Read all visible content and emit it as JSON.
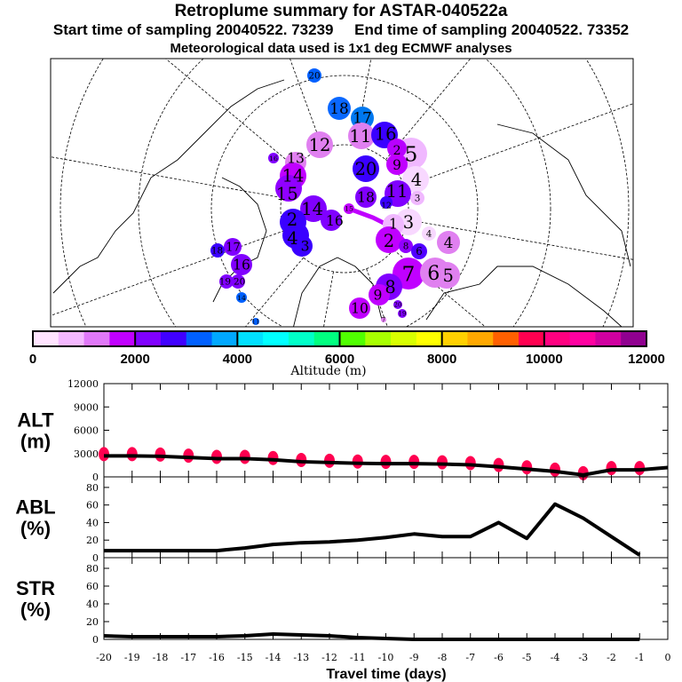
{
  "title": "Retroplume summary for ASTAR-040522a",
  "start_time": "Start time of sampling 20040522. 73239",
  "end_time": "End time of sampling 20040522. 73352",
  "met_data": "Meteorological data used is 1x1 deg ECMWF analyses",
  "colorbar": {
    "label": "Altitude (m)",
    "ticks": [
      "0",
      "2000",
      "4000",
      "6000",
      "8000",
      "10000",
      "12000"
    ],
    "colors": [
      "#ffe4ff",
      "#f4b8ff",
      "#e078f8",
      "#c000ff",
      "#8000ff",
      "#4000ff",
      "#0060ff",
      "#00a8ff",
      "#00e0ff",
      "#00ffff",
      "#00ffc8",
      "#00ff80",
      "#50ff00",
      "#a8ff00",
      "#d8ff00",
      "#ffff00",
      "#ffd000",
      "#ffa800",
      "#ff6000",
      "#ff0050",
      "#ff0080",
      "#ff00a0",
      "#d000a0",
      "#900090"
    ]
  },
  "map": {
    "clusters": [
      {
        "label": "20",
        "color": "#0060ff"
      },
      {
        "label": "18",
        "color": "#0a68ff"
      },
      {
        "label": "17",
        "color": "#0078f0"
      },
      {
        "label": "11",
        "color": "#e080f0"
      },
      {
        "label": "16",
        "color": "#3a00ff"
      },
      {
        "label": "12",
        "color": "#e080f0"
      },
      {
        "label": "5",
        "color": "#f0b8ff"
      },
      {
        "label": "2",
        "color": "#b800ff"
      },
      {
        "label": "9",
        "color": "#c000ff"
      },
      {
        "label": "20",
        "color": "#3a00ff"
      },
      {
        "label": "13",
        "color": "#e080f0"
      },
      {
        "label": "14",
        "color": "#c000ff"
      },
      {
        "label": "15",
        "color": "#9000ff"
      },
      {
        "label": "16",
        "color": "#8000ff"
      },
      {
        "label": "4",
        "color": "#f8d8ff"
      },
      {
        "label": "11",
        "color": "#8000ff"
      },
      {
        "label": "18",
        "color": "#8000ff"
      },
      {
        "label": "12",
        "color": "#3a00ff"
      },
      {
        "label": "3",
        "color": "#f0b8ff"
      },
      {
        "label": "14",
        "color": "#8000ff"
      },
      {
        "label": "16",
        "color": "#8000ff"
      },
      {
        "label": "15",
        "color": "#c000ff"
      },
      {
        "label": "2",
        "color": "#3a00ff"
      },
      {
        "label": "4",
        "color": "#3a00ff"
      },
      {
        "label": "3",
        "color": "#3a00ff"
      },
      {
        "label": "3",
        "color": "#f8d8ff"
      },
      {
        "label": "1",
        "color": "#f0b8ff"
      },
      {
        "label": "2",
        "color": "#c000ff"
      },
      {
        "label": "8",
        "color": "#9000ff"
      },
      {
        "label": "4",
        "color": "#f8d8ff"
      },
      {
        "label": "4",
        "color": "#e080f0"
      },
      {
        "label": "6",
        "color": "#5000ff"
      },
      {
        "label": "7",
        "color": "#c000ff"
      },
      {
        "label": "6",
        "color": "#e080f0"
      },
      {
        "label": "5",
        "color": "#e080f0"
      },
      {
        "label": "8",
        "color": "#8000ff"
      },
      {
        "label": "9",
        "color": "#c000ff"
      },
      {
        "label": "10",
        "color": "#c000ff"
      },
      {
        "label": "20",
        "color": "#8000ff"
      },
      {
        "label": "19",
        "color": "#8000ff"
      },
      {
        "label": "7",
        "color": "#e080f0"
      },
      {
        "label": "11",
        "color": "#0060ff"
      },
      {
        "label": "17",
        "color": "#8000ff"
      },
      {
        "label": "18",
        "color": "#3a00ff"
      },
      {
        "label": "16",
        "color": "#8000ff"
      },
      {
        "label": "19",
        "color": "#8000ff"
      },
      {
        "label": "20",
        "color": "#8000ff"
      },
      {
        "label": "14",
        "color": "#0060ff"
      }
    ]
  },
  "chart_data": [
    {
      "type": "line",
      "name": "ALT",
      "ylabel": "ALT (m)",
      "ylabel_lines": [
        "ALT",
        "(m)"
      ],
      "ylim": [
        0,
        12000
      ],
      "yticks": [
        "0",
        "3000",
        "6000",
        "9000",
        "12000"
      ],
      "x": [
        -20,
        -19,
        -18,
        -17,
        -16,
        -15,
        -14,
        -13,
        -12,
        -11,
        -10,
        -9,
        -8,
        -7,
        -6,
        -5,
        -4,
        -3,
        -2,
        -1,
        0
      ],
      "values": [
        2700,
        2700,
        2650,
        2500,
        2350,
        2350,
        2200,
        1950,
        1850,
        1750,
        1700,
        1700,
        1650,
        1550,
        1300,
        1000,
        700,
        250,
        900,
        900,
        1200
      ],
      "particle_color": "#ff0050"
    },
    {
      "type": "line",
      "name": "ABL",
      "ylabel": "ABL (%)",
      "ylabel_lines": [
        "ABL",
        "(%)"
      ],
      "ylim": [
        0,
        90
      ],
      "yticks": [
        "0",
        "20",
        "40",
        "60",
        "80"
      ],
      "x": [
        -20,
        -19,
        -18,
        -17,
        -16,
        -15,
        -14,
        -13,
        -12,
        -11,
        -10,
        -9,
        -8,
        -7,
        -6,
        -5,
        -4,
        -3,
        -2,
        -1
      ],
      "values": [
        8,
        8,
        8,
        8,
        8,
        11,
        15,
        17,
        18,
        20,
        23,
        27,
        24,
        24,
        40,
        22,
        61,
        45,
        24,
        3
      ]
    },
    {
      "type": "line",
      "name": "STR",
      "ylabel": "STR (%)",
      "ylabel_lines": [
        "STR",
        "(%)"
      ],
      "ylim": [
        0,
        90
      ],
      "yticks": [
        "0",
        "20",
        "40",
        "60",
        "80"
      ],
      "x": [
        -20,
        -19,
        -18,
        -17,
        -16,
        -15,
        -14,
        -13,
        -12,
        -11,
        -10,
        -9,
        -8,
        -7,
        -6,
        -5,
        -4,
        -3,
        -2,
        -1
      ],
      "values": [
        4,
        3,
        3,
        3,
        3,
        4,
        6,
        5,
        4,
        2,
        1,
        0,
        0,
        0,
        0,
        0,
        0,
        0,
        0,
        0
      ]
    }
  ],
  "xaxis": {
    "label": "Travel time (days)",
    "ticks": [
      "-20",
      "-19",
      "-18",
      "-17",
      "-16",
      "-15",
      "-14",
      "-13",
      "-12",
      "-11",
      "-10",
      "-9",
      "-8",
      "-7",
      "-6",
      "-5",
      "-4",
      "-3",
      "-2",
      "-1",
      "0"
    ]
  }
}
